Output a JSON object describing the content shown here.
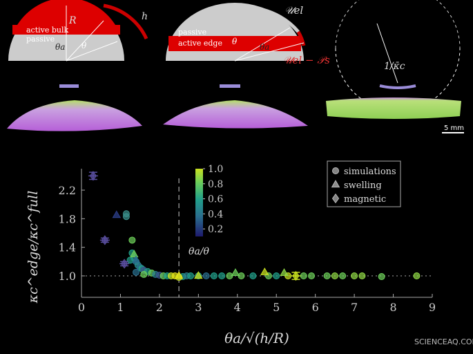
{
  "figure": {
    "panel_a": {
      "radius": "R",
      "thickness": "h",
      "bulk": "active bulk",
      "passive": "passive",
      "theta_a": "θa",
      "theta": "θ"
    },
    "panel_b": {
      "passive": "passive",
      "edge": "active edge",
      "theta": "θ",
      "theta_a": "θa",
      "energy_top": "𝒰el",
      "energy_bottom": "𝒰el − 𝒫s"
    },
    "panel_c": {
      "curvature": "1/κ̄c",
      "scale": "5 mm"
    },
    "watermark": "SCIENCEAQ.COM"
  },
  "chart_data": {
    "type": "scatter",
    "xlabel": "θa/√(h/R)",
    "ylabel": "κc^edge/κc^full",
    "xlim": [
      0,
      9
    ],
    "xticks": [
      0,
      1,
      2,
      3,
      4,
      5,
      6,
      7,
      8,
      9
    ],
    "ylim": [
      0.7,
      2.5
    ],
    "yticks": [
      {
        "value": 1,
        "label": "1.0"
      },
      1.4,
      1.8,
      2.2
    ],
    "vline": 2.5,
    "hline": 1,
    "colorbar": {
      "label": "θa/θ",
      "clim": [
        0.1,
        1
      ],
      "ticks": [
        0.2,
        0.4,
        0.6,
        0.8,
        {
          "value": 1,
          "label": "1.0"
        }
      ]
    },
    "series": [
      {
        "name": "simulations",
        "marker": "circle",
        "x": [
          1.15,
          1.15,
          1.3,
          1.3,
          1.35,
          1.4,
          1.45,
          1.5,
          1.55,
          1.6,
          1.7,
          1.8,
          1.9,
          2.0,
          2.1,
          2.2,
          2.3,
          2.4,
          2.6,
          2.7,
          2.8,
          3.0,
          3.2,
          3.4,
          3.6,
          3.8,
          4.1,
          4.4,
          4.8,
          5.0,
          5.3,
          5.7,
          5.9,
          6.3,
          6.5,
          6.7,
          7.0,
          7.2,
          7.7,
          8.6,
          1.25,
          1.4,
          1.6,
          2.5
        ],
        "values": [
          1.87,
          1.83,
          1.5,
          1.32,
          1.25,
          1.2,
          1.15,
          1.12,
          1.1,
          1.08,
          1.06,
          1.04,
          1.02,
          1.01,
          1.0,
          1.0,
          1.0,
          1.0,
          0.99,
          1.0,
          1.0,
          1.0,
          1.0,
          1.0,
          1.0,
          1.0,
          1.0,
          1.0,
          1.0,
          1.0,
          1.0,
          1.0,
          1.0,
          1.0,
          1.0,
          1.0,
          1.0,
          1.0,
          0.99,
          1.0,
          1.22,
          1.05,
          1.02,
          0.98
        ],
        "colors": [
          "#3a8f8a",
          "#3a8f8a",
          "#6cce59",
          "#21a08a",
          "#2a7f8e",
          "#2a6f8e",
          "#2a8f8e",
          "#2a6f8e",
          "#21a08a",
          "#3b528b",
          "#21a08a",
          "#6cce59",
          "#2a7f8e",
          "#3b528b",
          "#6cce59",
          "#21a08a",
          "#c8e020",
          "#e5e419",
          "#21a08a",
          "#2a7f8e",
          "#21a08a",
          "#21a08a",
          "#2a6f8e",
          "#21a08a",
          "#21a08a",
          "#6cce59",
          "#6cce59",
          "#21a08a",
          "#6cce59",
          "#21a08a",
          "#c8e020",
          "#6cce59",
          "#6cce59",
          "#6cce59",
          "#8fd744",
          "#6cce59",
          "#8fd744",
          "#8fd744",
          "#6cce59",
          "#8fd744",
          "#21a08a",
          "#2a6f8e",
          "#6cce59",
          "#c8e020"
        ]
      },
      {
        "name": "swelling",
        "marker": "triangle",
        "x": [
          0.9,
          1.35,
          1.4,
          2.5,
          3.0,
          3.95,
          4.7,
          5.2
        ],
        "values": [
          1.85,
          1.3,
          1.22,
          1.0,
          1.0,
          1.04,
          1.05,
          1.04
        ],
        "colors": [
          "#2c3f8a",
          "#6cce59",
          "#2a6f8e",
          "#e5e419",
          "#c8e020",
          "#6cce59",
          "#c8e020",
          "#8fd744"
        ]
      },
      {
        "name": "magnetic",
        "marker": "diamond",
        "x": [
          0.3,
          0.6,
          1.1,
          5.5
        ],
        "values": [
          2.4,
          1.5,
          1.17,
          1.0
        ],
        "errors": [
          0.05,
          0.03,
          0.03,
          0.05
        ],
        "colors": [
          "#5a4fa0",
          "#5a4fa0",
          "#5a4fa0",
          "#c8e020"
        ]
      }
    ],
    "legend": "upper right"
  }
}
